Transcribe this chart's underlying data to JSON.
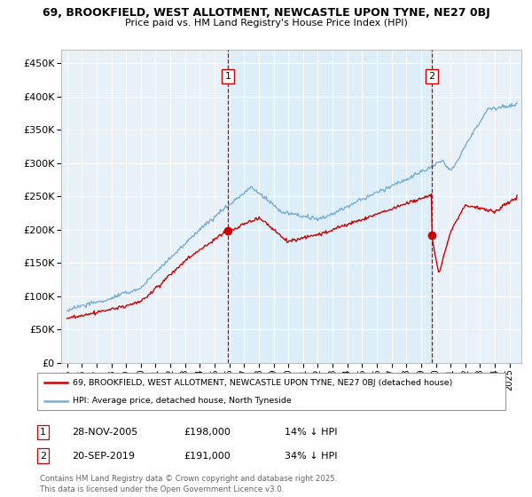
{
  "title_line1": "69, BROOKFIELD, WEST ALLOTMENT, NEWCASTLE UPON TYNE, NE27 0BJ",
  "title_line2": "Price paid vs. HM Land Registry's House Price Index (HPI)",
  "legend_red": "69, BROOKFIELD, WEST ALLOTMENT, NEWCASTLE UPON TYNE, NE27 0BJ (detached house)",
  "legend_blue": "HPI: Average price, detached house, North Tyneside",
  "annotation1_date": "28-NOV-2005",
  "annotation1_price": "£198,000",
  "annotation1_hpi": "14% ↓ HPI",
  "annotation2_date": "20-SEP-2019",
  "annotation2_price": "£191,000",
  "annotation2_hpi": "34% ↓ HPI",
  "footnote_line1": "Contains HM Land Registry data © Crown copyright and database right 2025.",
  "footnote_line2": "This data is licensed under the Open Government Licence v3.0.",
  "red_color": "#cc0000",
  "blue_color": "#7aadd4",
  "shade_color": "#ddeef8",
  "bg_color": "#e8f0f8",
  "annotation_line_color": "#cc0000",
  "ylim": [
    0,
    470000
  ],
  "yticks": [
    0,
    50000,
    100000,
    150000,
    200000,
    250000,
    300000,
    350000,
    400000,
    450000
  ],
  "sale1_x": 2005.91,
  "sale1_y": 198000,
  "sale2_x": 2019.72,
  "sale2_y": 191000,
  "xmin": 1994.6,
  "xmax": 2025.8
}
